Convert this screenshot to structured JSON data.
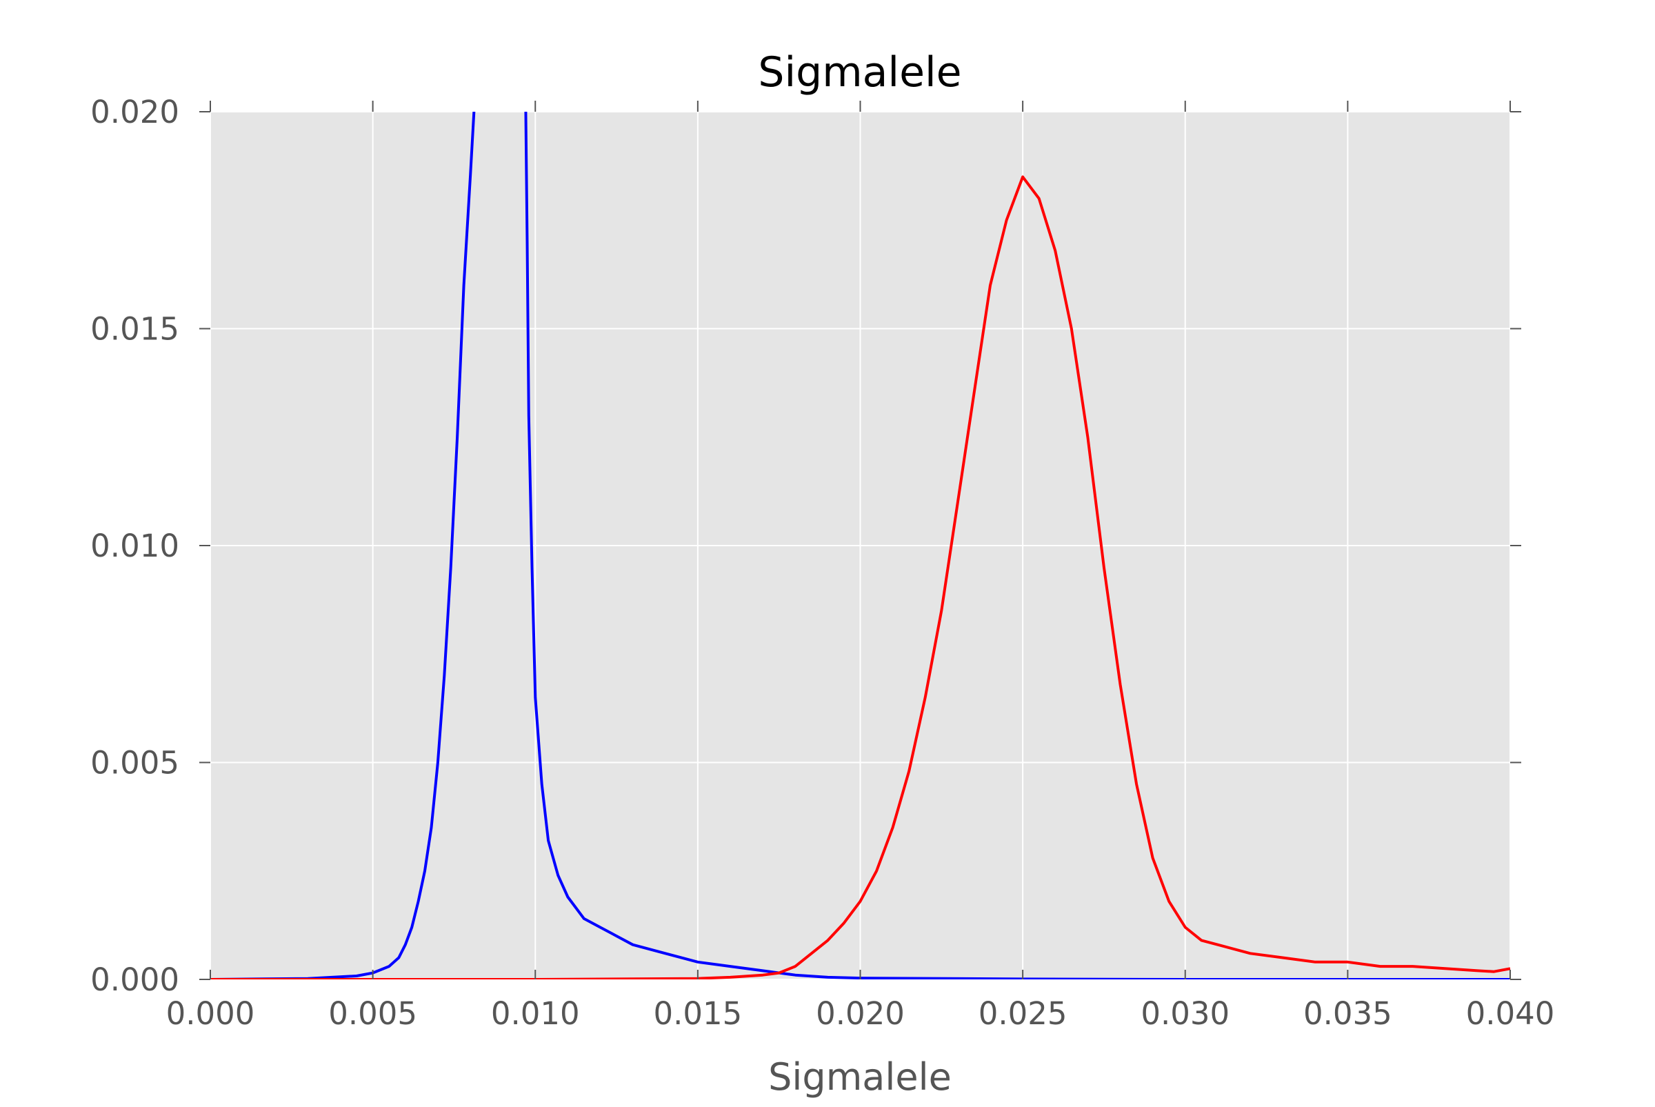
{
  "chart_data": {
    "type": "line",
    "title": "Sigmalele",
    "xlabel": "Sigmalele",
    "ylabel": "",
    "xlim": [
      0.0,
      0.04
    ],
    "ylim": [
      0.0,
      0.02
    ],
    "grid": true,
    "x_ticks": [
      "0.000",
      "0.005",
      "0.010",
      "0.015",
      "0.020",
      "0.025",
      "0.030",
      "0.035",
      "0.040"
    ],
    "x_tick_values": [
      0.0,
      0.005,
      0.01,
      0.015,
      0.02,
      0.025,
      0.03,
      0.035,
      0.04
    ],
    "y_ticks": [
      "0.000",
      "0.005",
      "0.010",
      "0.015",
      "0.020"
    ],
    "y_tick_values": [
      0.0,
      0.005,
      0.01,
      0.015,
      0.02
    ],
    "colors": {
      "plot_background": "#e5e5e5",
      "grid": "#ffffff",
      "tick_text": "#555555"
    },
    "series": [
      {
        "color": "#0000ff",
        "points": [
          [
            0.0,
            0.0
          ],
          [
            0.003,
            2e-05
          ],
          [
            0.0045,
            8e-05
          ],
          [
            0.005,
            0.00015
          ],
          [
            0.0055,
            0.0003
          ],
          [
            0.0058,
            0.0005
          ],
          [
            0.006,
            0.0008
          ],
          [
            0.0062,
            0.0012
          ],
          [
            0.0064,
            0.0018
          ],
          [
            0.0066,
            0.0025
          ],
          [
            0.0068,
            0.0035
          ],
          [
            0.007,
            0.005
          ],
          [
            0.0072,
            0.007
          ],
          [
            0.0074,
            0.0095
          ],
          [
            0.0076,
            0.0125
          ],
          [
            0.0078,
            0.016
          ],
          [
            0.008,
            0.0185
          ],
          [
            0.00815,
            0.0205
          ],
          [
            0.0097,
            0.0205
          ],
          [
            0.00975,
            0.017
          ],
          [
            0.0098,
            0.013
          ],
          [
            0.0099,
            0.0095
          ],
          [
            0.01,
            0.0065
          ],
          [
            0.0102,
            0.0045
          ],
          [
            0.0104,
            0.0032
          ],
          [
            0.0107,
            0.0024
          ],
          [
            0.011,
            0.0019
          ],
          [
            0.0115,
            0.0014
          ],
          [
            0.012,
            0.0012
          ],
          [
            0.0125,
            0.001
          ],
          [
            0.013,
            0.0008
          ],
          [
            0.014,
            0.0006
          ],
          [
            0.015,
            0.0004
          ],
          [
            0.016,
            0.0003
          ],
          [
            0.017,
            0.0002
          ],
          [
            0.018,
            0.0001
          ],
          [
            0.019,
            5e-05
          ],
          [
            0.02,
            3e-05
          ],
          [
            0.025,
            1e-05
          ],
          [
            0.03,
            0.0
          ],
          [
            0.04,
            0.0
          ]
        ]
      },
      {
        "color": "#ff0000",
        "points": [
          [
            0.0,
            0.0
          ],
          [
            0.01,
            0.0
          ],
          [
            0.015,
            2e-05
          ],
          [
            0.016,
            5e-05
          ],
          [
            0.017,
            0.0001
          ],
          [
            0.0175,
            0.00015
          ],
          [
            0.018,
            0.0003
          ],
          [
            0.0185,
            0.0006
          ],
          [
            0.019,
            0.0009
          ],
          [
            0.0195,
            0.0013
          ],
          [
            0.02,
            0.0018
          ],
          [
            0.0205,
            0.0025
          ],
          [
            0.021,
            0.0035
          ],
          [
            0.0215,
            0.0048
          ],
          [
            0.022,
            0.0065
          ],
          [
            0.0225,
            0.0085
          ],
          [
            0.023,
            0.011
          ],
          [
            0.0235,
            0.0135
          ],
          [
            0.024,
            0.016
          ],
          [
            0.0245,
            0.0175
          ],
          [
            0.025,
            0.0185
          ],
          [
            0.0255,
            0.018
          ],
          [
            0.026,
            0.0168
          ],
          [
            0.0265,
            0.015
          ],
          [
            0.027,
            0.0125
          ],
          [
            0.0275,
            0.0095
          ],
          [
            0.028,
            0.0068
          ],
          [
            0.0285,
            0.0045
          ],
          [
            0.029,
            0.0028
          ],
          [
            0.0295,
            0.0018
          ],
          [
            0.03,
            0.0012
          ],
          [
            0.0305,
            0.0009
          ],
          [
            0.031,
            0.0008
          ],
          [
            0.032,
            0.0006
          ],
          [
            0.033,
            0.0005
          ],
          [
            0.034,
            0.0004
          ],
          [
            0.035,
            0.0004
          ],
          [
            0.036,
            0.0003
          ],
          [
            0.037,
            0.0003
          ],
          [
            0.038,
            0.00025
          ],
          [
            0.039,
            0.0002
          ],
          [
            0.0395,
            0.00018
          ],
          [
            0.04,
            0.00025
          ]
        ]
      }
    ]
  }
}
